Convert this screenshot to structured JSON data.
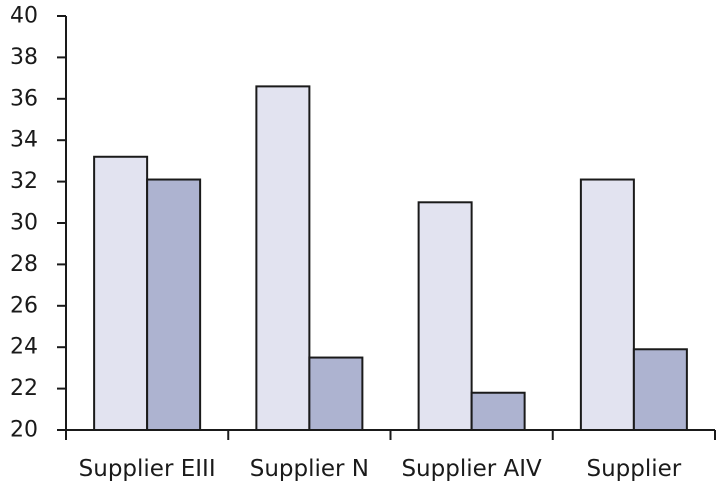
{
  "chart_data": {
    "type": "bar",
    "categories": [
      "Supplier EIII",
      "Supplier N",
      "Supplier AIV",
      "Supplier"
    ],
    "series": [
      {
        "values": [
          33.2,
          36.6,
          31.0,
          32.1
        ],
        "color": "#e2e3f0"
      },
      {
        "values": [
          32.1,
          23.5,
          21.8,
          23.9
        ],
        "color": "#adb3d0"
      }
    ],
    "ylim": [
      20,
      40
    ],
    "yticks": [
      20,
      22,
      24,
      26,
      28,
      30,
      32,
      34,
      36,
      38,
      40
    ],
    "ytick_labels": [
      "20",
      "22",
      "24",
      "26",
      "28",
      "30",
      "32",
      "34",
      "36",
      "38",
      "40"
    ],
    "grid": false,
    "title": "",
    "xlabel": "",
    "ylabel": ""
  }
}
